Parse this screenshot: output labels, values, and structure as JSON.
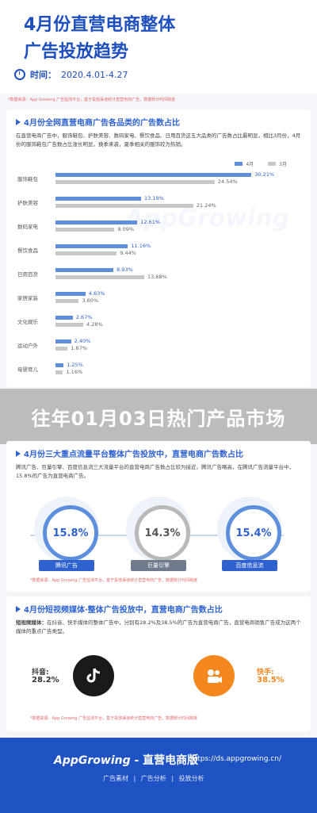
{
  "header": {
    "title_line1": "4月份直营电商整体",
    "title_line2": "广告投放趋势",
    "time_label": "时间：",
    "time_value": "2020.4.01-4.27"
  },
  "note_top": "*数据来源：App Growing 广告监测平台，基于投放渠道统计直营电商广告，数据统计时间跨度",
  "section1": {
    "title": "4月份全网直营电商广告各品类的广告数占比",
    "desc": "在直营电商广告中，服饰鞋包、护肤美容、数码家电、餐饮食品、日用百货这五大品类的广告数占比最明显，相比3月份，4月份的服饰鞋包广告数占比涨长明显，换季来袭，夏季相关的服饰较为热销。"
  },
  "overlay_text": "往年01月03日热门产品市场",
  "chart_data": {
    "type": "bar",
    "title": "4月份全网直营电商广告各品类的广告数占比",
    "categories": [
      "服饰鞋包",
      "护肤美容",
      "数码家电",
      "餐饮食品",
      "日用百货",
      "家居家装",
      "文化娱乐",
      "运动户外",
      "母婴育儿"
    ],
    "series": [
      {
        "name": "4月",
        "values": [
          30.21,
          13.19,
          12.61,
          11.16,
          8.93,
          4.63,
          2.67,
          2.4,
          1.25
        ],
        "labels": [
          "30.21%",
          "13.19%",
          "12.61%",
          "11.16%",
          "8.93%",
          "4.63%",
          "2.67%",
          "2.40%",
          "1.25%"
        ]
      },
      {
        "name": "3月",
        "values": [
          24.54,
          21.24,
          9.09,
          9.44,
          13.68,
          3.6,
          4.28,
          1.87,
          1.16
        ],
        "labels": [
          "24.54%",
          "21.24%",
          "9.09%",
          "9.44%",
          "13.68%",
          "3.60%",
          "4.28%",
          "1.87%",
          "1.16%"
        ]
      }
    ],
    "colors": {
      "apr": "#5d8fdc",
      "mar": "#c8c8c8"
    },
    "xlim": [
      0,
      32
    ],
    "legend": "top-right",
    "grid": false
  },
  "section2": {
    "title": "4月份三大重点流量平台整体广告投放中，直营电商广告数占比",
    "desc": "腾讯广告、巨量引擎、百度信息流三大流量平台的直营电商广告数占比较为接近，腾讯广告略高，在腾讯广告流量平台中，15.8%的广告为直营电商广告。",
    "rings": [
      {
        "value": "15.8%",
        "label": "腾讯广告"
      },
      {
        "value": "14.3%",
        "label": "巨量引擎"
      },
      {
        "value": "15.4%",
        "label": "百度信息流"
      }
    ],
    "note": "*数据来源：App Growing 广告监测平台，基于投放渠道统计直营电商广告，数据统计时间跨度"
  },
  "section3": {
    "title": "4月份短视频媒体·整体广告投放中，直营电商广告数占比",
    "desc_bold": "短视频媒体：",
    "desc": "在抖音、快手媒体的整体广告中，分别有28.2%及38.5%的广告为直营电商广告，直营电商销售广告成为这两个媒体的重点广告类型。",
    "apps": [
      {
        "name": "抖音:",
        "value": "28.2%"
      },
      {
        "name": "快手:",
        "value": "38.5%"
      }
    ],
    "note": "*数据来源：App Growing 广告监测平台，基于投放渠道统计直营电商广告，数据统计时间跨度"
  },
  "footer": {
    "brand": "AppGrowing",
    "brand_sub": " - 直营电商版",
    "url": "https://ds.appgrowing.cn/",
    "links": "广告素材 | 广告分析 | 投放分析"
  }
}
